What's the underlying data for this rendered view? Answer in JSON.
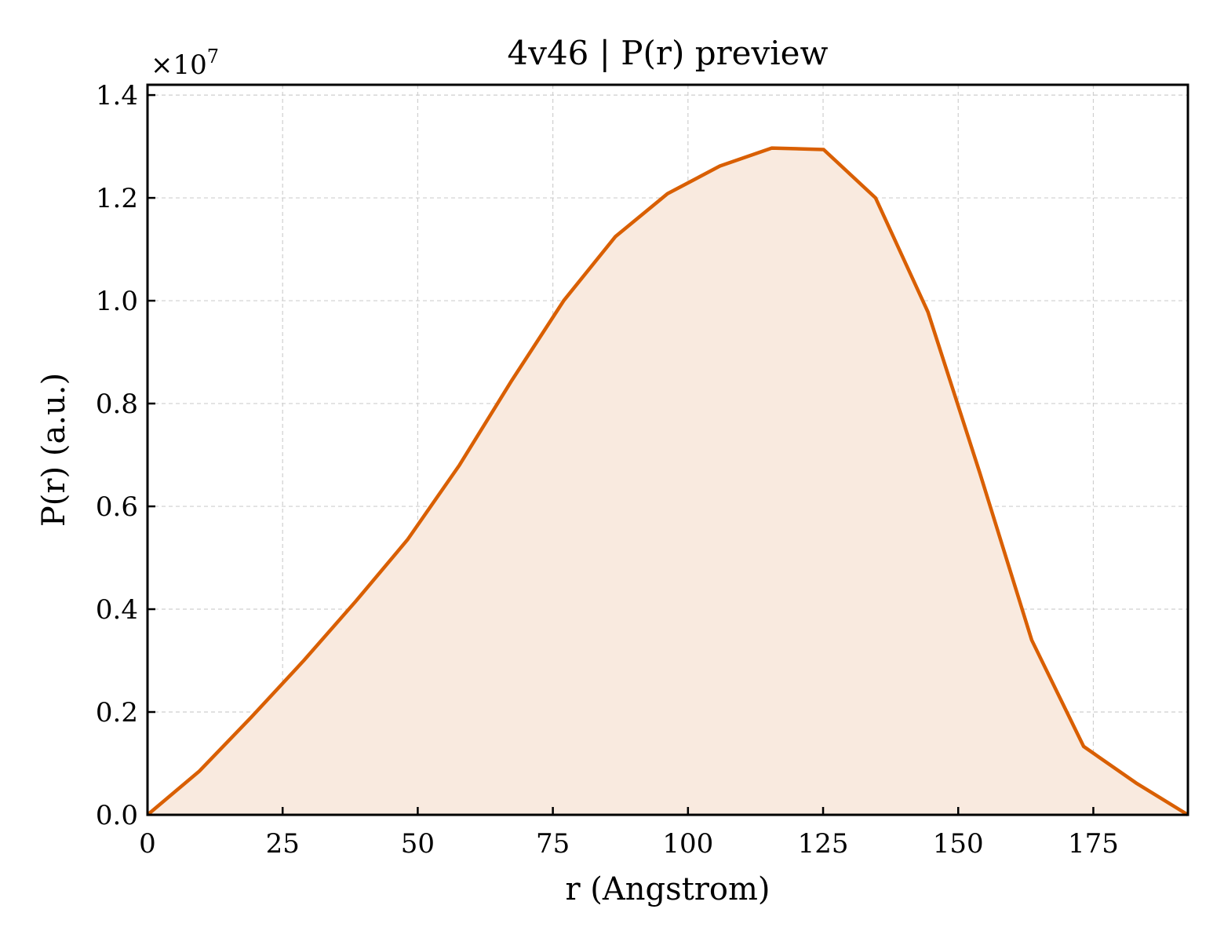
{
  "chart_data": {
    "type": "area",
    "title": "4v46 | P(r) preview",
    "xlabel": "r (Angstrom)",
    "ylabel": "P(r) (a.u.)",
    "y_multiplier_label": "×10",
    "y_multiplier_exponent": "7",
    "xlim": [
      0,
      192.5
    ],
    "ylim": [
      0,
      1.42
    ],
    "x_ticks": [
      0,
      25,
      50,
      75,
      100,
      125,
      150,
      175
    ],
    "x_tick_labels": [
      "0",
      "25",
      "50",
      "75",
      "100",
      "125",
      "150",
      "175"
    ],
    "y_ticks": [
      0,
      0.2,
      0.4,
      0.6,
      0.8,
      1.0,
      1.2,
      1.4
    ],
    "y_tick_labels": [
      "0.0",
      "0.2",
      "0.4",
      "0.6",
      "0.8",
      "1.0",
      "1.2",
      "1.4"
    ],
    "grid": true,
    "series": [
      {
        "color": "#d95f02",
        "fill_color": "#f9eadf",
        "x": [
          0,
          9.6,
          19.2,
          28.9,
          38.5,
          48.1,
          57.7,
          67.4,
          77.0,
          86.6,
          96.2,
          105.9,
          115.5,
          125.1,
          134.7,
          144.4,
          154.0,
          163.6,
          173.2,
          182.9,
          192.5
        ],
        "values": [
          0,
          0.085,
          0.19,
          0.3,
          0.415,
          0.535,
          0.68,
          0.845,
          1.0,
          1.125,
          1.208,
          1.262,
          1.297,
          1.294,
          1.2,
          0.978,
          0.665,
          0.34,
          0.133,
          0.062,
          0
        ]
      }
    ]
  }
}
